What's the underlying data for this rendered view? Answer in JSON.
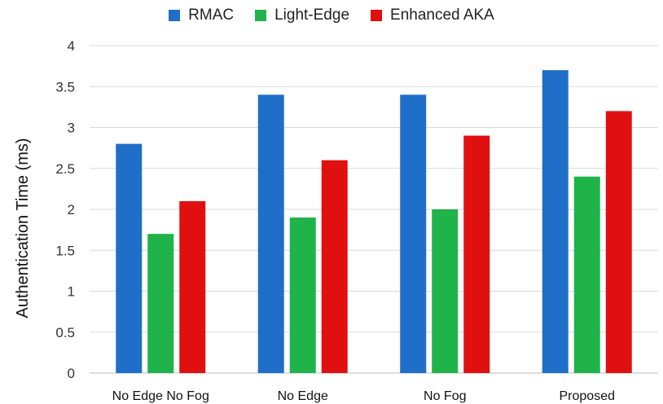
{
  "chart_data": {
    "type": "bar",
    "title": "",
    "xlabel": "",
    "ylabel": "Authentication Time (ms)",
    "ylim": [
      0,
      4
    ],
    "yticks": [
      "0",
      "0.5",
      "1",
      "1.5",
      "2",
      "2.5",
      "3",
      "3.5",
      "4"
    ],
    "grid": true,
    "legend_position": "top-center",
    "categories": [
      "No Edge No Fog",
      "No Edge",
      "No Fog",
      "Proposed"
    ],
    "series": [
      {
        "name": "RMAC",
        "color": "#1f6fc8",
        "values": [
          2.8,
          3.4,
          3.4,
          3.7
        ]
      },
      {
        "name": "Light-Edge",
        "color": "#1fb34a",
        "values": [
          1.7,
          1.9,
          2.0,
          2.4
        ]
      },
      {
        "name": "Enhanced AKA",
        "color": "#e01010",
        "values": [
          2.1,
          2.6,
          2.9,
          3.2
        ]
      }
    ]
  }
}
